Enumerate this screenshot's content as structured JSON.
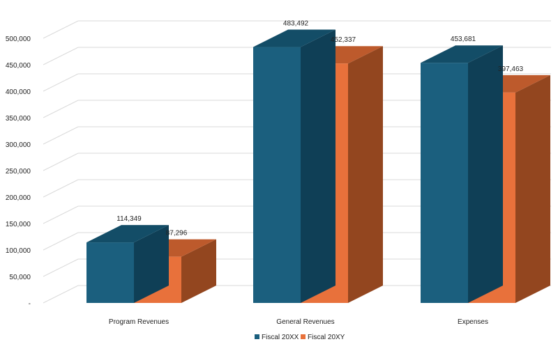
{
  "chart_data": {
    "type": "bar",
    "style": "3d-clustered-column",
    "title": "",
    "xlabel": "",
    "ylabel": "",
    "categories": [
      "Program Revenues",
      "General Revenues",
      "Expenses"
    ],
    "series": [
      {
        "name": "Fiscal 20XX",
        "values": [
          114349,
          483492,
          453681
        ],
        "labels": [
          "114,349",
          "483,492",
          "453,681"
        ],
        "color": "#1b5f7e",
        "top_color": "#134d67",
        "side_color": "#0f3f56"
      },
      {
        "name": "Fiscal 20XY",
        "values": [
          87296,
          452337,
          397463
        ],
        "labels": [
          "87,296",
          "452,337",
          "397,463"
        ],
        "color": "#e8713b",
        "top_color": "#bd5a2c",
        "side_color": "#93461f"
      }
    ],
    "ylim": [
      0,
      550000
    ],
    "y_ticks": [
      0,
      50000,
      100000,
      150000,
      200000,
      250000,
      300000,
      350000,
      400000,
      450000,
      500000
    ],
    "y_tick_labels": [
      "-",
      "50,000",
      "100,000",
      "150,000",
      "200,000",
      "250,000",
      "300,000",
      "350,000",
      "400,000",
      "450,000",
      "500,000"
    ],
    "grid": true,
    "legend": "bottom",
    "colors": {
      "gridline": "#d9d9d9"
    }
  }
}
